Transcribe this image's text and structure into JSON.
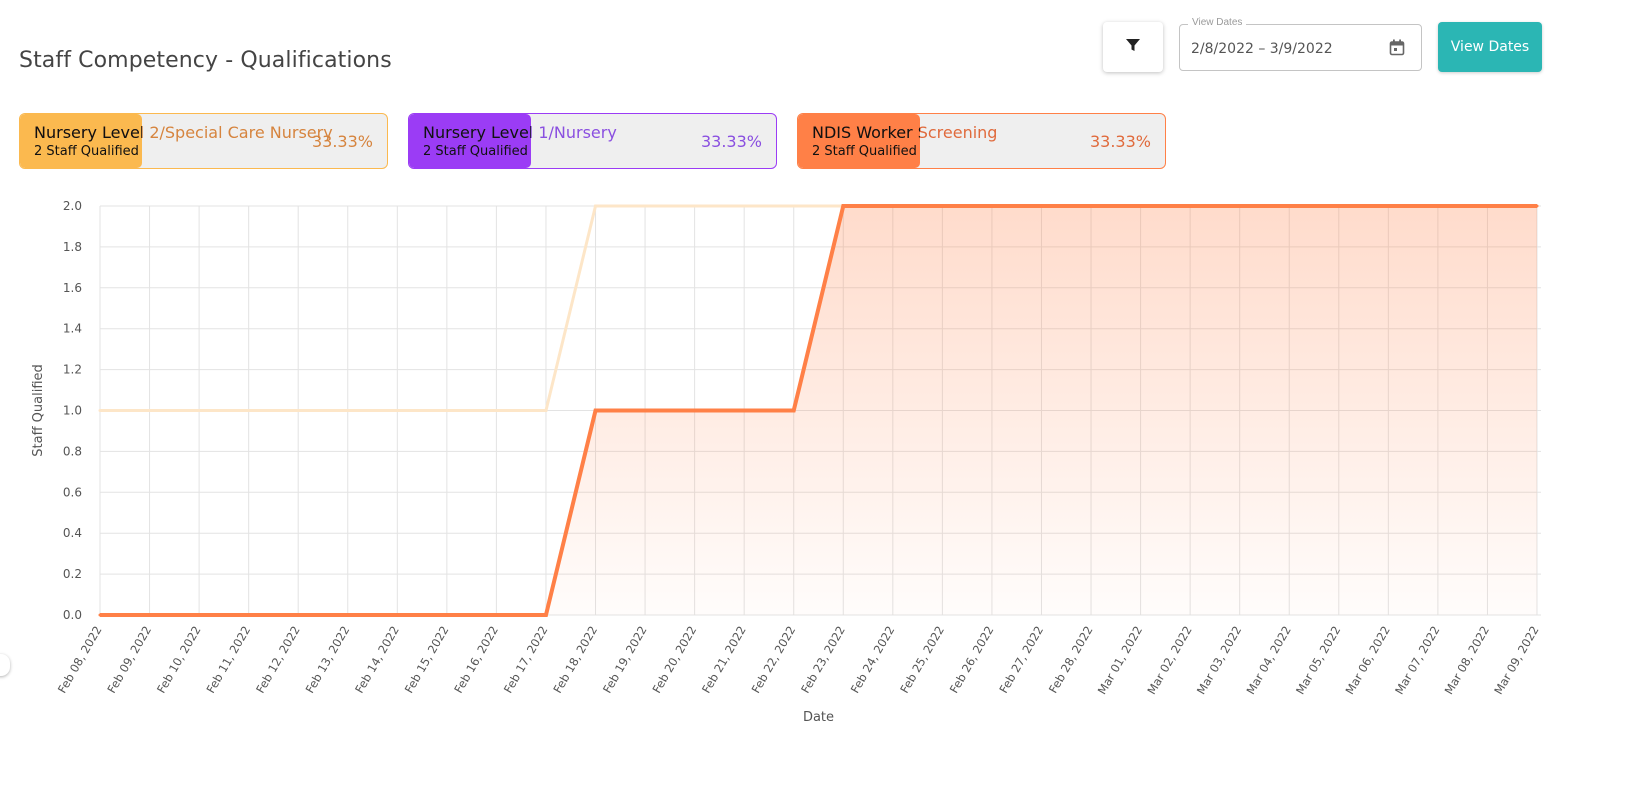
{
  "header": {
    "title": "Staff Competency - Qualifications",
    "filter_icon": "filter-icon",
    "date_range": {
      "legend": "View Dates",
      "value": "2/8/2022 – 3/9/2022",
      "icon": "calendar-icon"
    },
    "view_button_label": "View Dates"
  },
  "cards": [
    {
      "name": "Nursery Level 2/Special Care Nursery",
      "sub": "2 Staff Qualified",
      "percent": "33.33%",
      "fill_fraction": 0.3333,
      "color": "#fbb94f",
      "text_color": "#d6843e"
    },
    {
      "name": "Nursery Level 1/Nursery",
      "sub": "2 Staff Qualified",
      "percent": "33.33%",
      "fill_fraction": 0.3333,
      "color": "#9b3cf5",
      "text_color": "#8a4fe0"
    },
    {
      "name": "NDIS Worker Screening",
      "sub": "2 Staff Qualified",
      "percent": "33.33%",
      "fill_fraction": 0.3333,
      "color": "#ff8047",
      "text_color": "#e06a3c"
    }
  ],
  "chart_data": {
    "type": "area",
    "xlabel": "Date",
    "ylabel": "Staff Qualified",
    "ylim": [
      0,
      2.0
    ],
    "yticks": [
      "0.0",
      "0.2",
      "0.4",
      "0.6",
      "0.8",
      "1.0",
      "1.2",
      "1.4",
      "1.6",
      "1.8",
      "2.0"
    ],
    "grid": true,
    "x": [
      "Feb 08, 2022",
      "Feb 09, 2022",
      "Feb 10, 2022",
      "Feb 11, 2022",
      "Feb 12, 2022",
      "Feb 13, 2022",
      "Feb 14, 2022",
      "Feb 15, 2022",
      "Feb 16, 2022",
      "Feb 17, 2022",
      "Feb 18, 2022",
      "Feb 19, 2022",
      "Feb 20, 2022",
      "Feb 21, 2022",
      "Feb 22, 2022",
      "Feb 23, 2022",
      "Feb 24, 2022",
      "Feb 25, 2022",
      "Feb 26, 2022",
      "Feb 27, 2022",
      "Feb 28, 2022",
      "Mar 01, 2022",
      "Mar 02, 2022",
      "Mar 03, 2022",
      "Mar 04, 2022",
      "Mar 05, 2022",
      "Mar 06, 2022",
      "Mar 07, 2022",
      "Mar 08, 2022",
      "Mar 09, 2022"
    ],
    "series": [
      {
        "color": "#fde6c8",
        "filled": false,
        "values": [
          1,
          1,
          1,
          1,
          1,
          1,
          1,
          1,
          1,
          1,
          2,
          2,
          2,
          2,
          2,
          2,
          2,
          2,
          2,
          2,
          2,
          2,
          2,
          2,
          2,
          2,
          2,
          2,
          2,
          2
        ]
      },
      {
        "color": "#ff8047",
        "filled": true,
        "values": [
          0,
          0,
          0,
          0,
          0,
          0,
          0,
          0,
          0,
          0,
          1,
          1,
          1,
          1,
          1,
          2,
          2,
          2,
          2,
          2,
          2,
          2,
          2,
          2,
          2,
          2,
          2,
          2,
          2,
          2
        ]
      }
    ]
  }
}
